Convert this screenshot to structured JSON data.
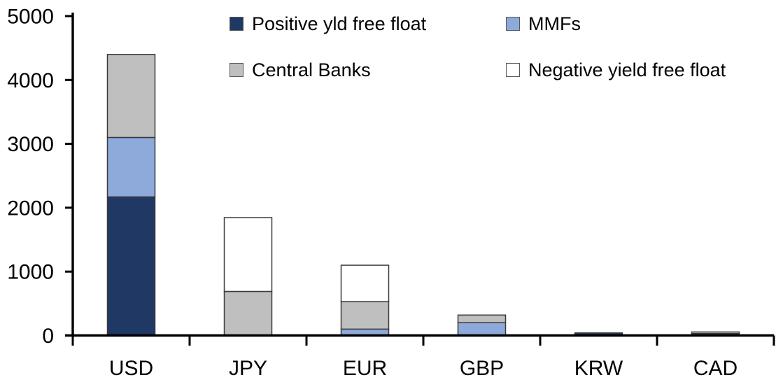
{
  "chart_data": {
    "type": "bar",
    "stacked": true,
    "title": "",
    "xlabel": "",
    "ylabel": "",
    "categories": [
      "USD",
      "JPY",
      "EUR",
      "GBP",
      "KRW",
      "CAD"
    ],
    "series": [
      {
        "name": "Positive yld free float",
        "color": "#1F3864",
        "values": [
          2170,
          0,
          0,
          0,
          40,
          30
        ]
      },
      {
        "name": "MMFs",
        "color": "#8EAADB",
        "values": [
          930,
          0,
          100,
          200,
          0,
          0
        ]
      },
      {
        "name": "Central Banks",
        "color": "#BFBFBF",
        "values": [
          1300,
          690,
          430,
          120,
          0,
          25
        ]
      },
      {
        "name": "Negative yield free float",
        "color": "#FFFFFF",
        "values": [
          0,
          1155,
          570,
          0,
          0,
          0
        ]
      }
    ],
    "ylim": [
      0,
      5000
    ],
    "yticks": [
      0,
      1000,
      2000,
      3000,
      4000,
      5000
    ],
    "grid": false,
    "legend_position": "top",
    "legend_columns": 2,
    "axis_color": "#000000",
    "bar_border_color": "#3A3A3A",
    "text_color": "#000000"
  }
}
